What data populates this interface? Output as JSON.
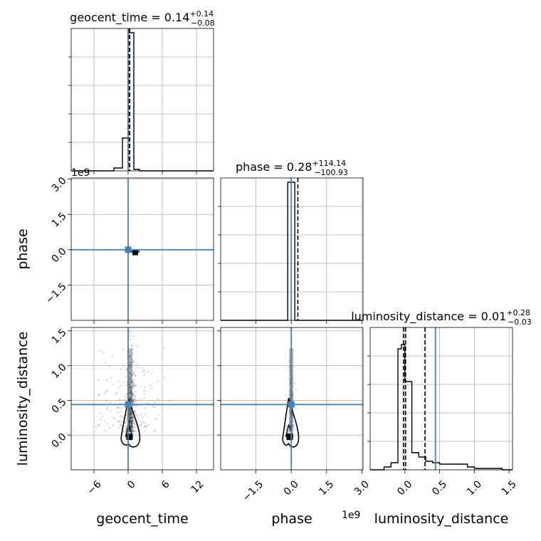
{
  "chart_data": {
    "type": "scatter",
    "variant": "corner",
    "parameters": [
      "geocent_time",
      "phase",
      "luminosity_distance"
    ],
    "truths": {
      "geocent_time": 0.0,
      "phase": 0.0,
      "luminosity_distance": 0.44
    },
    "ranges": {
      "geocent_time": [
        -10,
        15
      ],
      "phase": [
        -3.0,
        3.05
      ],
      "luminosity_distance": [
        -0.5,
        1.55
      ]
    },
    "offset_texts": {
      "phase": "1e9"
    },
    "ticks": {
      "geocent_time": {
        "values": [
          -6,
          0,
          6,
          12
        ],
        "labels": [
          "−6",
          "0",
          "6",
          "12"
        ]
      },
      "phase": {
        "values": [
          -1.5,
          0.0,
          1.5,
          3.0
        ],
        "labels": [
          "−1.5",
          "0.0",
          "1.5",
          "3.0"
        ]
      },
      "luminosity_distance": {
        "values": [
          0.0,
          0.5,
          1.0,
          1.5
        ],
        "labels": [
          "0.0",
          "0.5",
          "1.0",
          "1.5"
        ]
      }
    },
    "titles": [
      {
        "param": "geocent_time",
        "text": "geocent_time = 0.14",
        "plus": "+0.14",
        "minus": "−0.08"
      },
      {
        "param": "phase",
        "text": "phase = 0.28",
        "plus": "+114.14",
        "minus": "−100.93"
      },
      {
        "param": "luminosity_distance",
        "text": "luminosity_distance = 0.01",
        "plus": "+0.28",
        "minus": "−0.03"
      }
    ],
    "quantile_lines": {
      "geocent_time": [
        0.06,
        0.14,
        0.28
      ],
      "phase": [
        -100.65,
        0.28,
        114.42
      ],
      "luminosity_distance": [
        -0.02,
        0.01,
        0.29
      ]
    },
    "histograms": {
      "geocent_time": {
        "edges": [
          -10,
          -2.5,
          -1,
          0,
          1,
          2,
          3.7,
          15
        ],
        "counts": [
          0.0,
          0.02,
          0.23,
          0.97,
          0.01,
          0.0,
          0.0
        ]
      },
      "phase": {
        "edges": [
          -3.0,
          -0.15,
          0.0,
          0.15,
          3.05
        ],
        "counts": [
          0.0,
          0.97,
          0.97,
          0.0
        ]
      },
      "luminosity_distance": {
        "edges": [
          -0.5,
          -0.3,
          -0.2,
          -0.1,
          -0.05,
          0.0,
          0.1,
          0.2,
          0.3,
          0.4,
          0.5,
          0.7,
          0.9,
          1.0,
          1.2,
          1.4,
          1.55
        ],
        "counts": [
          0.0,
          0.02,
          0.05,
          0.85,
          0.88,
          0.62,
          0.12,
          0.09,
          0.06,
          0.05,
          0.04,
          0.04,
          0.02,
          0.01,
          0.01,
          0.0
        ]
      }
    },
    "contour_peaks": {
      "geocent_time_luminosity_distance": {
        "x": 0.3,
        "y": 0.0
      },
      "phase_luminosity_distance": {
        "x": -0.05,
        "y": 0.0
      }
    },
    "ylabels": {
      "phase": "phase",
      "luminosity_distance": "luminosity_distance"
    },
    "xlabels": {
      "geocent_time": "geocent_time",
      "phase": "phase",
      "luminosity_distance": "luminosity_distance"
    },
    "colors": {
      "truth": "#4682b4",
      "hist": "#000000",
      "grid": "#b0b0b0",
      "points": "#000000"
    },
    "grid": true
  }
}
